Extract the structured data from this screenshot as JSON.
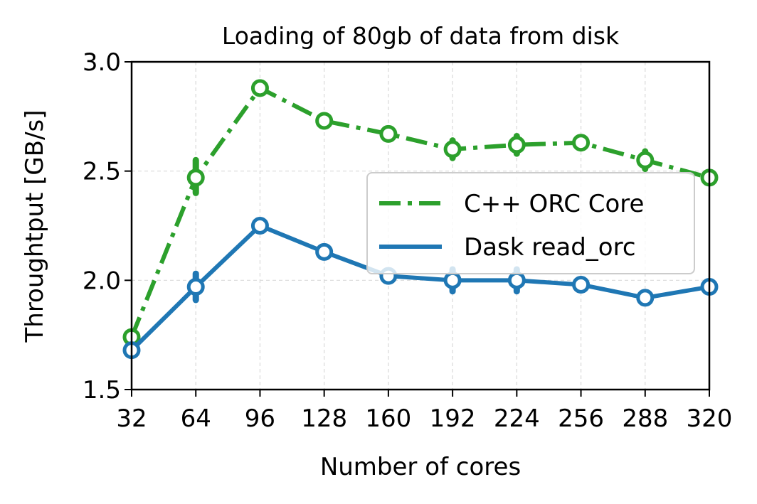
{
  "chart_data": {
    "type": "line",
    "title": "Loading of 80gb of data from disk",
    "xlabel": "Number of cores",
    "ylabel": "Throughtput [GB/s]",
    "x": [
      32,
      64,
      96,
      128,
      160,
      192,
      224,
      256,
      288,
      320
    ],
    "x_ticks": [
      "32",
      "64",
      "96",
      "128",
      "160",
      "192",
      "224",
      "256",
      "288",
      "320"
    ],
    "xlim": [
      32,
      320
    ],
    "y_ticks": [
      "1.5",
      "2.0",
      "2.5",
      "3.0"
    ],
    "ylim": [
      1.5,
      3.0
    ],
    "grid": true,
    "legend_position": "center-right",
    "series": [
      {
        "name": "C++ ORC Core",
        "color": "#2ca02c",
        "line_style": "dash-dot",
        "values": [
          1.74,
          2.47,
          2.88,
          2.73,
          2.67,
          2.6,
          2.62,
          2.63,
          2.55,
          2.47
        ],
        "err_low": [
          1.72,
          2.4,
          2.86,
          2.72,
          2.66,
          2.56,
          2.58,
          2.62,
          2.51,
          2.46
        ],
        "err_high": [
          1.76,
          2.55,
          2.9,
          2.74,
          2.68,
          2.64,
          2.66,
          2.64,
          2.59,
          2.48
        ]
      },
      {
        "name": "Dask read_orc",
        "color": "#1f77b4",
        "line_style": "solid",
        "values": [
          1.68,
          1.97,
          2.25,
          2.13,
          2.02,
          2.0,
          2.0,
          1.98,
          1.92,
          1.97
        ],
        "err_low": [
          1.67,
          1.91,
          2.23,
          2.12,
          2.01,
          1.95,
          1.95,
          1.96,
          1.91,
          1.96
        ],
        "err_high": [
          1.69,
          2.03,
          2.27,
          2.14,
          2.03,
          2.05,
          2.05,
          2.0,
          1.93,
          1.98
        ]
      }
    ]
  }
}
